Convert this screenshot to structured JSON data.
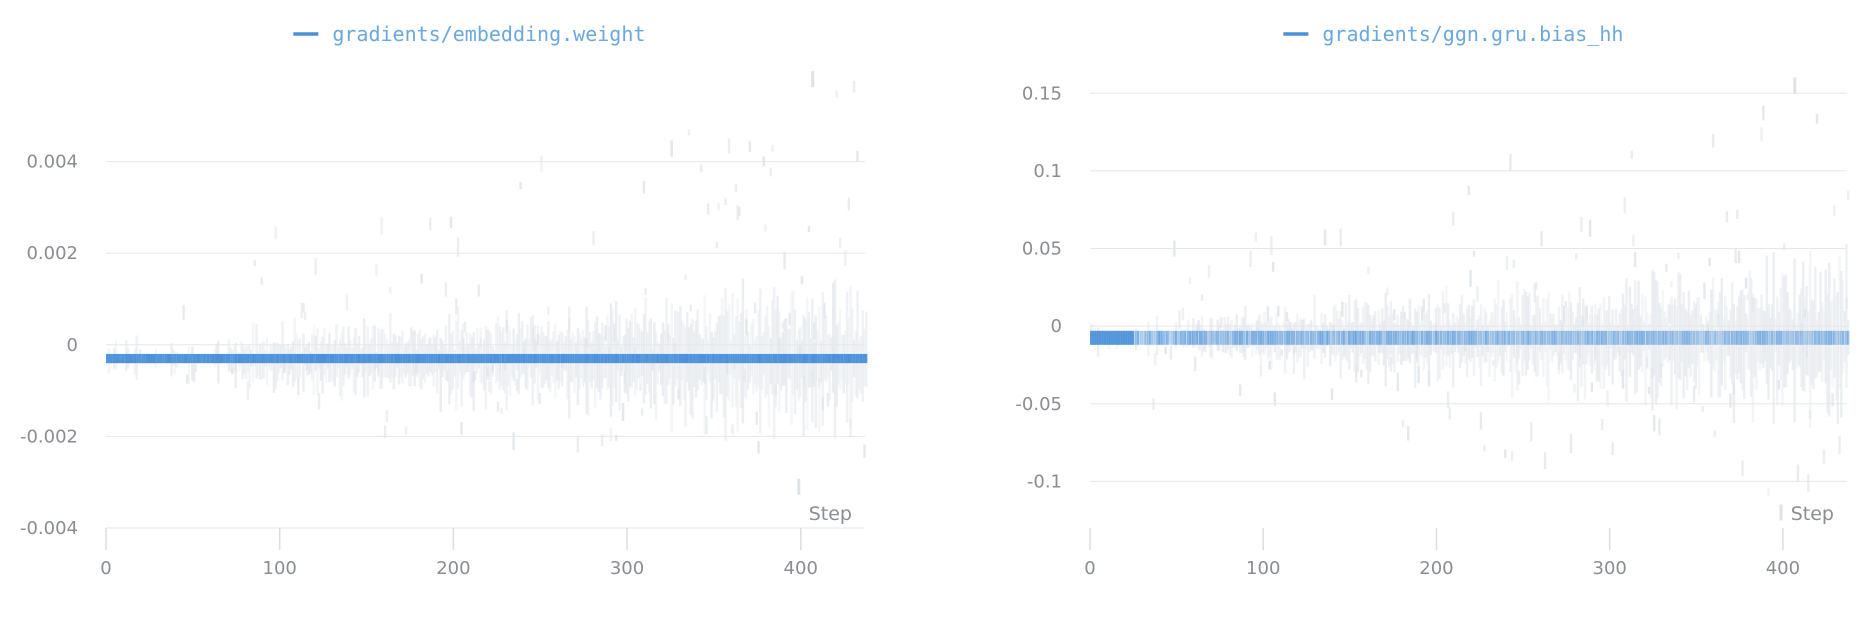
{
  "accent_color": "#4a90d9",
  "chart_data": [
    {
      "type": "heatmap",
      "title": "",
      "legend": [
        "gradients/embedding.weight"
      ],
      "legend_position": "top-center",
      "xlabel": "Step",
      "ylabel": "",
      "grid": true,
      "xlim": [
        0,
        437
      ],
      "ylim": [
        -0.004,
        0.006
      ],
      "x_ticks": [
        0,
        100,
        200,
        300,
        400
      ],
      "x_tick_labels": [
        "0",
        "100",
        "200",
        "300",
        "400"
      ],
      "y_ticks": [
        -0.004,
        -0.002,
        0,
        0.002,
        0.004
      ],
      "y_tick_labels": [
        "-0.004",
        "-0.002",
        "0",
        "0.002",
        "0.004"
      ],
      "dense_band": [
        -0.0004,
        -0.0002
      ],
      "spread_start": 70,
      "outlier_max": 0.0058,
      "outlier_min": -0.0031
    },
    {
      "type": "heatmap",
      "title": "",
      "legend": [
        "gradients/ggn.gru.bias_hh"
      ],
      "legend_position": "top-center",
      "xlabel": "Step",
      "ylabel": "",
      "grid": true,
      "xlim": [
        0,
        437
      ],
      "ylim": [
        -0.13,
        0.165
      ],
      "x_ticks": [
        0,
        100,
        200,
        300,
        400
      ],
      "x_tick_labels": [
        "0",
        "100",
        "200",
        "300",
        "400"
      ],
      "y_ticks": [
        -0.1,
        -0.05,
        0,
        0.05,
        0.1,
        0.15
      ],
      "y_tick_labels": [
        "-0.1",
        "-0.05",
        "0",
        "0.05",
        "0.1",
        "0.15"
      ],
      "dense_band": [
        -0.012,
        -0.003
      ],
      "spread_start": 60,
      "outlier_max": 0.155,
      "outlier_min": -0.12
    }
  ]
}
